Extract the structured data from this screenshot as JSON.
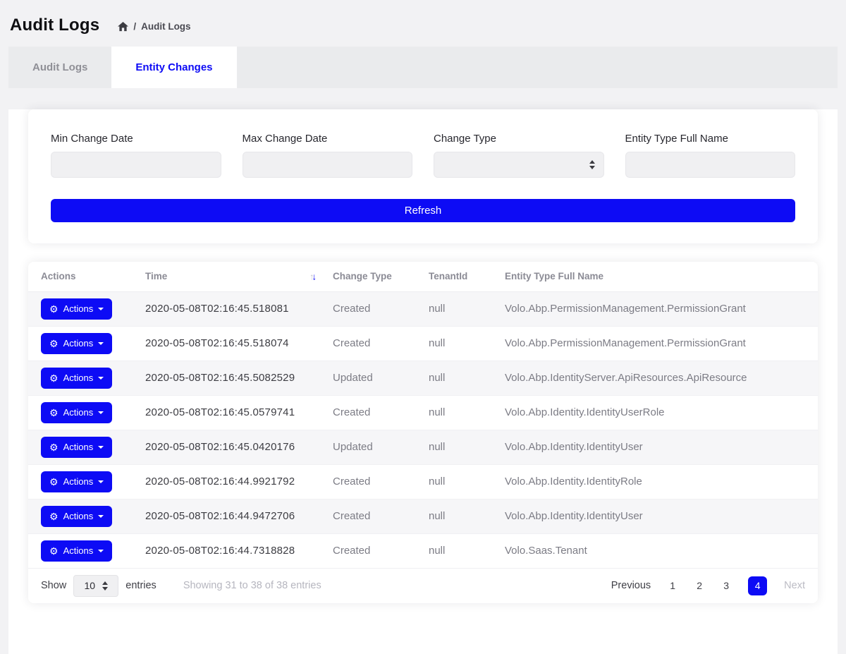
{
  "colors": {
    "primary": "#0d0bf5",
    "page_bg": "#f2f2f4",
    "strip_bg": "#eaebed",
    "stripe_row": "#f6f6f8"
  },
  "header": {
    "title": "Audit Logs",
    "breadcrumb": {
      "separator": "/",
      "current": "Audit Logs"
    }
  },
  "tabs": [
    {
      "label": "Audit Logs",
      "active": false
    },
    {
      "label": "Entity Changes",
      "active": true
    }
  ],
  "filters": {
    "min_change_date_label": "Min Change Date",
    "max_change_date_label": "Max Change Date",
    "change_type_label": "Change Type",
    "entity_type_label": "Entity Type Full Name",
    "min_change_date_value": "",
    "max_change_date_value": "",
    "change_type_value": "",
    "entity_type_value": "",
    "refresh_label": "Refresh"
  },
  "table": {
    "actions_label": "Actions",
    "columns": {
      "actions": "Actions",
      "time": "Time",
      "change_type": "Change Type",
      "tenant_id": "TenantId",
      "entity_type": "Entity Type Full Name"
    },
    "sort": {
      "column": "Time",
      "direction": "descending"
    },
    "rows": [
      {
        "time": "2020-05-08T02:16:45.518081",
        "change_type": "Created",
        "tenant_id": "null",
        "entity_type": "Volo.Abp.PermissionManagement.PermissionGrant"
      },
      {
        "time": "2020-05-08T02:16:45.518074",
        "change_type": "Created",
        "tenant_id": "null",
        "entity_type": "Volo.Abp.PermissionManagement.PermissionGrant"
      },
      {
        "time": "2020-05-08T02:16:45.5082529",
        "change_type": "Updated",
        "tenant_id": "null",
        "entity_type": "Volo.Abp.IdentityServer.ApiResources.ApiResource"
      },
      {
        "time": "2020-05-08T02:16:45.0579741",
        "change_type": "Created",
        "tenant_id": "null",
        "entity_type": "Volo.Abp.Identity.IdentityUserRole"
      },
      {
        "time": "2020-05-08T02:16:45.0420176",
        "change_type": "Updated",
        "tenant_id": "null",
        "entity_type": "Volo.Abp.Identity.IdentityUser"
      },
      {
        "time": "2020-05-08T02:16:44.9921792",
        "change_type": "Created",
        "tenant_id": "null",
        "entity_type": "Volo.Abp.Identity.IdentityRole"
      },
      {
        "time": "2020-05-08T02:16:44.9472706",
        "change_type": "Created",
        "tenant_id": "null",
        "entity_type": "Volo.Abp.Identity.IdentityUser"
      },
      {
        "time": "2020-05-08T02:16:44.7318828",
        "change_type": "Created",
        "tenant_id": "null",
        "entity_type": "Volo.Saas.Tenant"
      }
    ]
  },
  "footer": {
    "show_label": "Show",
    "page_size": "10",
    "entries_label": "entries",
    "info": "Showing 31 to 38 of 38 entries",
    "pagination": {
      "previous_label": "Previous",
      "pages": [
        "1",
        "2",
        "3",
        "4"
      ],
      "active_page": "4",
      "next_label": "Next"
    }
  },
  "icons": {
    "gear": "⚙",
    "sort_asc": "↑",
    "sort_desc": "↓"
  }
}
